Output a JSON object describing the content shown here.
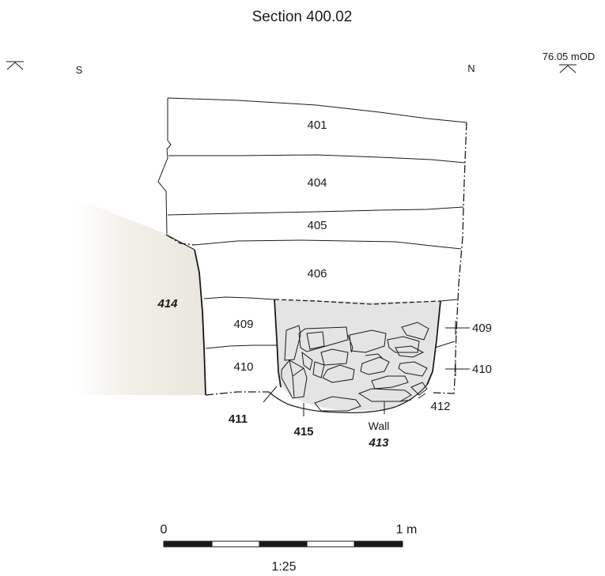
{
  "title": "Section 400.02",
  "orientation": {
    "south": "S",
    "north": "N"
  },
  "datum_label": "76.05 mOD",
  "contexts": {
    "c401": "401",
    "c404": "404",
    "c405": "405",
    "c406": "406",
    "c409_left": "409",
    "c410_left": "410",
    "c409_right": "409",
    "c410_right": "410",
    "c414": "414",
    "c411": "411",
    "c415": "415",
    "c412": "412",
    "wall_word": "Wall",
    "c413": "413"
  },
  "scale_bar": {
    "start_label": "0",
    "end_label": "1 m",
    "ratio": "1:25"
  },
  "colors": {
    "ink": "#1a1a1a",
    "fill_414": "#efece4",
    "fill_wall": "#e4e4e4"
  }
}
